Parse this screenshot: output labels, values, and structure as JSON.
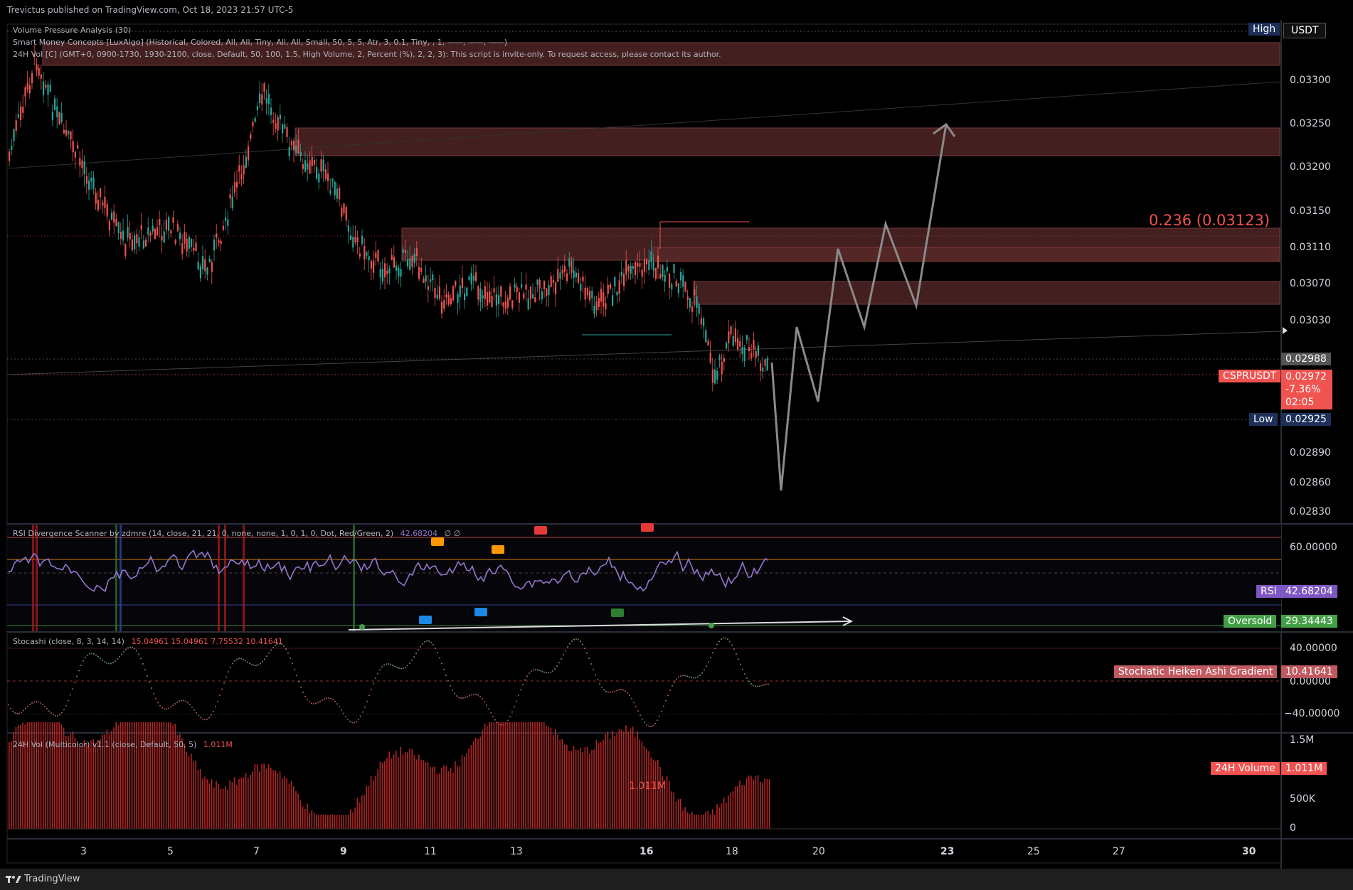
{
  "header": {
    "publish_text": "Trevictus published on TradingView.com, Oct 18, 2023 21:57 UTC-5"
  },
  "legends": {
    "main": [
      "Volume Pressure Analysis (30)",
      "Smart Money Concepts [LuxAlgo] (Historical, Colored, All, All, Tiny, All, All, Small, 50, 5, 5, Atr, 3, 0.1, Tiny, , 1, ——, ——, ——)",
      "24H Vol [C] (GMT+0, 0900-1730, 1930-2100, close, Default, 50, 100, 1.5, High Volume, 2, Percent (%), 2, 2, 3): This script is invite-only. To request access, please contact its author."
    ],
    "rsi": "RSI Divergence Scanner by zdmre (14, close, 21, 21, 0, none, none, 1, 0, 1, 0, Dot, Red/Green, 2)",
    "rsi_value": "42.68204",
    "rsi_extra": "∅  ∅",
    "stoch": "Stocashi (close, 8, 3, 14, 14)",
    "stoch_values": "15.04961  15.04961  7.75532  10.41641",
    "vol": "24H Vol (Multicolor) v1.1 (close, Default, 50, 5)",
    "vol_value": "1.011M"
  },
  "price_axis": {
    "currency": "USDT",
    "ticks": [
      "0.03300",
      "0.03250",
      "0.03200",
      "0.03150",
      "0.03110",
      "0.03070",
      "0.03030",
      "0.02890",
      "0.02860",
      "0.02830"
    ],
    "high_label": "High",
    "tag_0298": "0.02988",
    "symbol": "CSPRUSDT",
    "last_price": "0.02972",
    "change": "-7.36%",
    "countdown": "02:05",
    "low_label": "Low",
    "low_value": "0.02925"
  },
  "fib_label": "0.236 (0.03123)",
  "rsi_axis": {
    "ticks": [
      "60.00000"
    ],
    "rsi_label": "RSI",
    "rsi_value": "42.68204",
    "oversold_label": "Oversold",
    "oversold_value": "29.34443",
    "markers": [
      "HB",
      "HB",
      "HB",
      "HB",
      "LB",
      "LB",
      "LB",
      "LB"
    ]
  },
  "stoch_axis": {
    "ticks": [
      "40.00000",
      "0.00000",
      "−40.00000"
    ],
    "label": "Stochatic Heiken Ashi Gradient",
    "value": "10.41641"
  },
  "vol_axis": {
    "ticks": [
      "1.5M",
      "500K",
      "0"
    ],
    "label": "24H Volume",
    "value": "1.011M",
    "inline_value": "1.011M"
  },
  "time_axis": {
    "labels": [
      "3",
      "5",
      "7",
      "9",
      "11",
      "13",
      "16",
      "18",
      "20",
      "23",
      "25",
      "27",
      "30"
    ]
  },
  "footer": {
    "brand": "TradingView"
  },
  "colors": {
    "zone": "#5a2a2a",
    "candle_up": "#26a69a",
    "candle_down": "#ef5350",
    "rsi_line": "#9575cd",
    "red_tag": "#f05350",
    "navy_tag": "#1e2f5a",
    "green_tag": "#43a047",
    "projection": "#8a8a8a"
  }
}
